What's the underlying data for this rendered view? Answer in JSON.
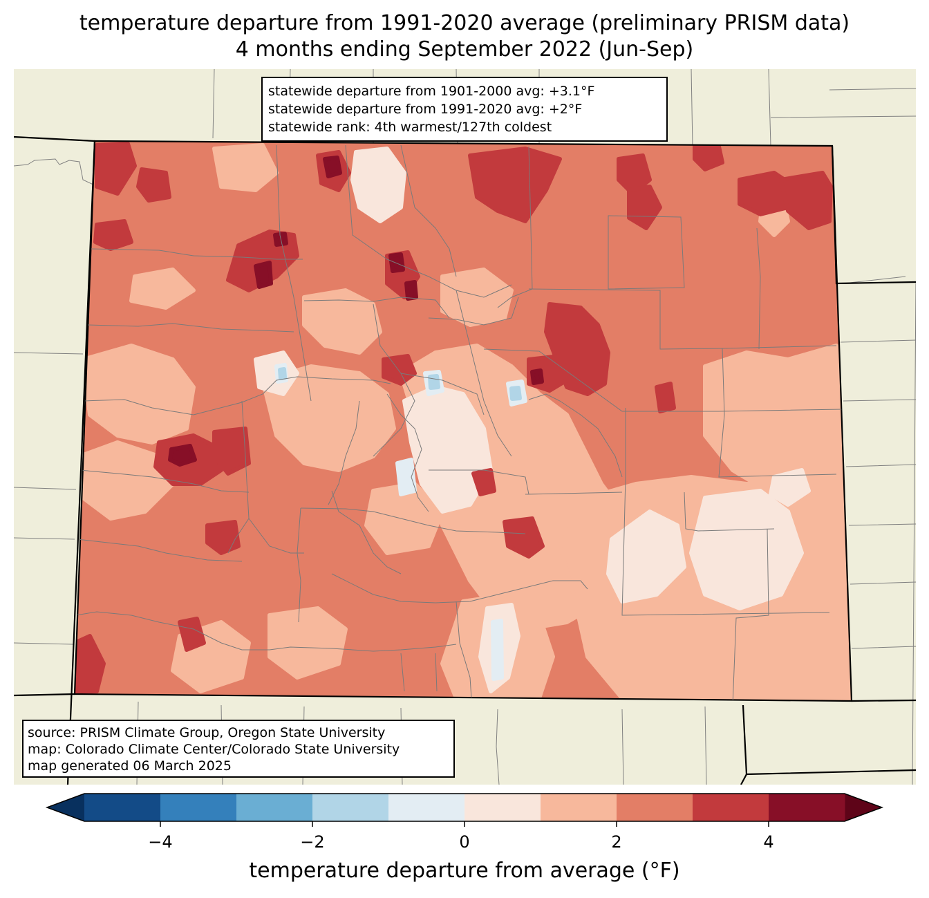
{
  "title": {
    "line1": "temperature departure from 1991-2020 average (preliminary PRISM data)",
    "line2": "4 months ending September 2022 (Jun-Sep)"
  },
  "stats_box": {
    "line1": "statewide departure from 1901-2000 avg: +3.1°F",
    "line2": "statewide departure from 1991-2020 avg: +2°F",
    "line3": "statewide rank: 4th warmest/127th coldest"
  },
  "source_box": {
    "line1": "source: PRISM Climate Group, Oregon State University",
    "line2": "map: Colorado Climate Center/Colorado State University",
    "line3": "map generated 06 March 2025"
  },
  "colorbar": {
    "label": "temperature departure from average (°F)",
    "ticks": [
      "−4",
      "−2",
      "0",
      "2",
      "4"
    ],
    "tick_values": [
      -4,
      -2,
      0,
      2,
      4
    ],
    "range": [
      -5,
      5
    ],
    "extend": "both",
    "bins": [
      {
        "from": -5,
        "to": -4,
        "color": "#134b87"
      },
      {
        "from": -4,
        "to": -3,
        "color": "#3480bb"
      },
      {
        "from": -3,
        "to": -2,
        "color": "#6aaed3"
      },
      {
        "from": -2,
        "to": -1,
        "color": "#b1d5e7"
      },
      {
        "from": -1,
        "to": 0,
        "color": "#e3edf3"
      },
      {
        "from": 0,
        "to": 1,
        "color": "#f9e6dc"
      },
      {
        "from": 1,
        "to": 2,
        "color": "#f7b89c"
      },
      {
        "from": 2,
        "to": 3,
        "color": "#e37e66"
      },
      {
        "from": 3,
        "to": 4,
        "color": "#c23a3d"
      },
      {
        "from": 4,
        "to": 5,
        "color": "#870f27"
      }
    ],
    "under_color": "#08305e",
    "over_color": "#5e0418"
  },
  "map": {
    "background_color": "#efeedb",
    "base_anomaly_color": "#e37e66",
    "border_color": "#000000",
    "county_line_color": "#808080"
  }
}
